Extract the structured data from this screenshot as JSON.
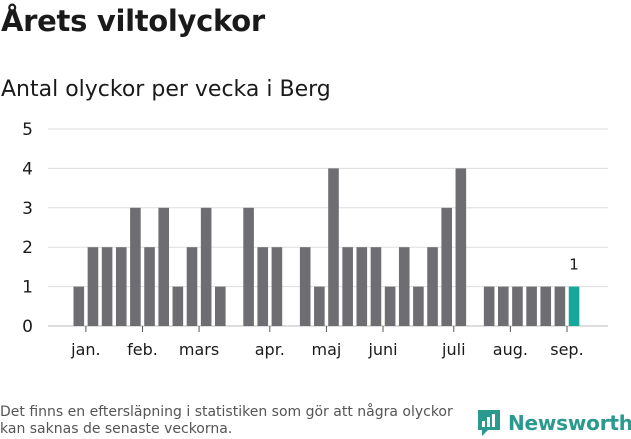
{
  "title": "Årets viltolyckor",
  "subtitle": "Antal olyckor per vecka i Berg",
  "footnote": "Det finns en eftersläpning i statistiken som gör att några olyckor kan saknas de senaste veckorna.",
  "brand": {
    "name": "Newsworthy",
    "icon": "newsworthy-logo-icon",
    "color": "#2a9a8e"
  },
  "colors": {
    "bar": "#6e6d71",
    "highlight": "#14a79a",
    "grid": "#dddddd"
  },
  "chart_data": {
    "type": "bar",
    "title": "Antal olyckor per vecka i Berg",
    "xlabel": "",
    "ylabel": "",
    "ylim": [
      0,
      5
    ],
    "yticks": [
      "0",
      "1",
      "2",
      "3",
      "4",
      "5"
    ],
    "grid": true,
    "legend": "none",
    "week_slots": 36,
    "values": [
      1,
      2,
      2,
      2,
      3,
      2,
      3,
      1,
      2,
      3,
      1,
      null,
      3,
      2,
      2,
      null,
      2,
      1,
      4,
      2,
      2,
      2,
      1,
      2,
      1,
      2,
      3,
      4,
      null,
      1,
      1,
      1,
      1,
      1,
      1,
      1
    ],
    "highlight_index": 35,
    "highlight_label": "1",
    "month_labels": [
      {
        "label": "jan.",
        "week": 0.5
      },
      {
        "label": "feb.",
        "week": 4.5
      },
      {
        "label": "mars",
        "week": 8.5
      },
      {
        "label": "apr.",
        "week": 13.5
      },
      {
        "label": "maj",
        "week": 17.5
      },
      {
        "label": "juni",
        "week": 21.5
      },
      {
        "label": "juli",
        "week": 26.5
      },
      {
        "label": "aug.",
        "week": 30.5
      },
      {
        "label": "sep.",
        "week": 34.5
      }
    ]
  }
}
